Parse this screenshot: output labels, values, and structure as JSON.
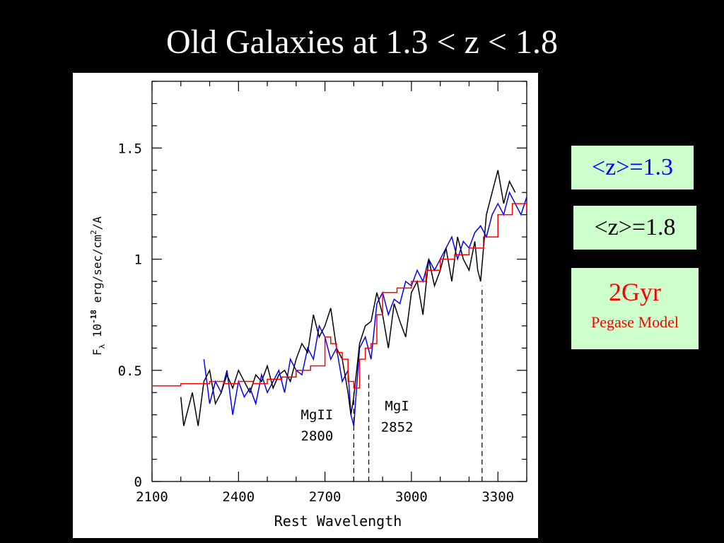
{
  "slide": {
    "title": "Old Galaxies at 1.3 < z < 1.8"
  },
  "legend": {
    "z13": {
      "label": "<z>=1.3",
      "color": "#0000ff"
    },
    "z18": {
      "label": "<z>=1.8",
      "color": "#000000"
    },
    "model": {
      "label": "2Gyr",
      "sublabel": "Pegase Model",
      "color": "#ff0000"
    },
    "box_color": "#ccffcc"
  },
  "chart_data": {
    "type": "line",
    "xlabel": "Rest Wavelength",
    "ylabel_parts": {
      "f": "F",
      "sub": "λ",
      "exp_base": "10",
      "exp": "-18",
      "units": "erg/sec/cm",
      "units_exp": "2",
      "units_tail": "/A"
    },
    "xlim": [
      2100,
      3400
    ],
    "ylim": [
      0,
      1.8
    ],
    "xticks": [
      2100,
      2400,
      2700,
      3000,
      3300
    ],
    "yticks": [
      0,
      0.5,
      1,
      1.5
    ],
    "ytick_labels": [
      "0",
      "0.5",
      "1",
      "1.5"
    ],
    "grid": false,
    "series": [
      {
        "name": "<z>=1.3",
        "color": "#0000ff",
        "x": [
          2280,
          2300,
          2320,
          2340,
          2360,
          2380,
          2400,
          2420,
          2440,
          2460,
          2480,
          2500,
          2520,
          2540,
          2560,
          2580,
          2600,
          2620,
          2640,
          2660,
          2680,
          2700,
          2720,
          2740,
          2760,
          2780,
          2790,
          2800,
          2820,
          2840,
          2860,
          2880,
          2900,
          2920,
          2940,
          2960,
          2980,
          3000,
          3020,
          3040,
          3060,
          3080,
          3100,
          3120,
          3140,
          3160,
          3180,
          3200,
          3220,
          3240,
          3260,
          3280,
          3300,
          3320,
          3340,
          3360,
          3380,
          3400
        ],
        "y": [
          0.55,
          0.35,
          0.45,
          0.4,
          0.5,
          0.3,
          0.45,
          0.38,
          0.42,
          0.35,
          0.48,
          0.4,
          0.45,
          0.5,
          0.4,
          0.55,
          0.5,
          0.48,
          0.6,
          0.55,
          0.7,
          0.65,
          0.55,
          0.6,
          0.45,
          0.5,
          0.3,
          0.25,
          0.6,
          0.65,
          0.55,
          0.8,
          0.85,
          0.75,
          0.82,
          0.8,
          0.9,
          0.88,
          0.95,
          0.9,
          1.0,
          0.95,
          1.0,
          1.05,
          1.1,
          1.0,
          1.08,
          1.05,
          1.12,
          1.15,
          1.1,
          1.2,
          1.25,
          1.2,
          1.3,
          1.25,
          1.2,
          1.28
        ]
      },
      {
        "name": "<z>=1.8",
        "color": "#000000",
        "x": [
          2200,
          2210,
          2220,
          2240,
          2260,
          2280,
          2300,
          2320,
          2340,
          2360,
          2380,
          2400,
          2420,
          2440,
          2460,
          2480,
          2500,
          2520,
          2540,
          2560,
          2580,
          2600,
          2620,
          2640,
          2660,
          2680,
          2700,
          2720,
          2740,
          2760,
          2780,
          2790,
          2800,
          2820,
          2840,
          2860,
          2880,
          2900,
          2920,
          2940,
          2960,
          2980,
          3000,
          3020,
          3040,
          3060,
          3080,
          3100,
          3120,
          3140,
          3160,
          3180,
          3200,
          3220,
          3230,
          3240,
          3260,
          3280,
          3300,
          3320,
          3340,
          3360
        ],
        "y": [
          0.38,
          0.25,
          0.3,
          0.4,
          0.25,
          0.45,
          0.5,
          0.35,
          0.4,
          0.48,
          0.42,
          0.5,
          0.45,
          0.4,
          0.48,
          0.45,
          0.52,
          0.42,
          0.48,
          0.5,
          0.45,
          0.55,
          0.62,
          0.58,
          0.75,
          0.65,
          0.7,
          0.78,
          0.6,
          0.55,
          0.4,
          0.3,
          0.38,
          0.62,
          0.7,
          0.72,
          0.85,
          0.75,
          0.6,
          0.8,
          0.72,
          0.65,
          0.85,
          0.9,
          0.75,
          1.0,
          0.88,
          0.95,
          1.05,
          0.9,
          1.1,
          1.0,
          0.95,
          1.08,
          0.95,
          0.9,
          1.2,
          1.3,
          1.4,
          1.25,
          1.35,
          1.3
        ]
      },
      {
        "name": "2Gyr",
        "color": "#ff0000",
        "x": [
          2100,
          2150,
          2200,
          2250,
          2300,
          2350,
          2400,
          2450,
          2500,
          2550,
          2600,
          2650,
          2700,
          2720,
          2740,
          2760,
          2780,
          2800,
          2820,
          2840,
          2860,
          2880,
          2900,
          2950,
          3000,
          3050,
          3100,
          3150,
          3200,
          3250,
          3300,
          3350,
          3400
        ],
        "y": [
          0.43,
          0.43,
          0.44,
          0.44,
          0.45,
          0.44,
          0.45,
          0.44,
          0.46,
          0.47,
          0.5,
          0.52,
          0.65,
          0.62,
          0.58,
          0.55,
          0.45,
          0.42,
          0.55,
          0.6,
          0.62,
          0.75,
          0.85,
          0.87,
          0.9,
          0.95,
          1.0,
          1.02,
          1.05,
          1.1,
          1.2,
          1.25,
          1.22
        ]
      }
    ],
    "annotations": [
      {
        "label": "MgII",
        "value": "2800",
        "x": 2800
      },
      {
        "label": "MgI",
        "value": "2852",
        "x": 2852
      },
      {
        "label": "",
        "value": "",
        "x": 3245
      }
    ]
  }
}
